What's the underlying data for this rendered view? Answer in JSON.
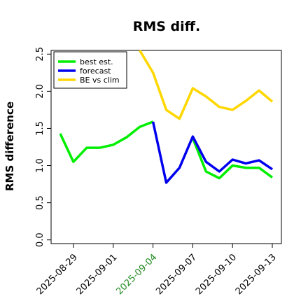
{
  "chart_data": {
    "type": "line",
    "title": "RMS diff.",
    "xlabel": "",
    "ylabel": "RMS difference",
    "ylim": [
      -0.05,
      2.55
    ],
    "yticks": [
      0.0,
      0.5,
      1.0,
      1.5,
      2.0,
      2.5
    ],
    "x": [
      "2025-08-28",
      "2025-08-29",
      "2025-08-30",
      "2025-08-31",
      "2025-09-01",
      "2025-09-02",
      "2025-09-03",
      "2025-09-04",
      "2025-09-05",
      "2025-09-06",
      "2025-09-07",
      "2025-09-08",
      "2025-09-09",
      "2025-09-10",
      "2025-09-11",
      "2025-09-12",
      "2025-09-13"
    ],
    "xtick_labels": [
      "2025-08-29",
      "2025-09-01",
      "2025-09-04",
      "2025-09-07",
      "2025-09-10",
      "2025-09-13"
    ],
    "xtick_colors": [
      "#000000",
      "#000000",
      "#228B22",
      "#000000",
      "#000000",
      "#000000"
    ],
    "grid": false,
    "legend_position": "top-left",
    "series": [
      {
        "name": "best est.",
        "color": "#00ee00",
        "values": [
          1.43,
          1.05,
          1.24,
          1.24,
          1.28,
          1.38,
          1.52,
          1.59,
          null,
          null,
          1.37,
          0.92,
          0.83,
          1.0,
          0.97,
          0.97,
          0.84
        ]
      },
      {
        "name": "forecast",
        "color": "#0000ee",
        "values": [
          null,
          null,
          null,
          null,
          null,
          null,
          null,
          1.59,
          0.77,
          0.97,
          1.39,
          1.05,
          0.92,
          1.08,
          1.03,
          1.07,
          0.95
        ]
      },
      {
        "name": "BE vs clim",
        "color": "#ffd700",
        "values": [
          null,
          null,
          null,
          null,
          null,
          null,
          2.57,
          2.25,
          1.75,
          1.63,
          2.04,
          1.93,
          1.79,
          1.75,
          1.87,
          2.01,
          1.86
        ]
      }
    ]
  }
}
